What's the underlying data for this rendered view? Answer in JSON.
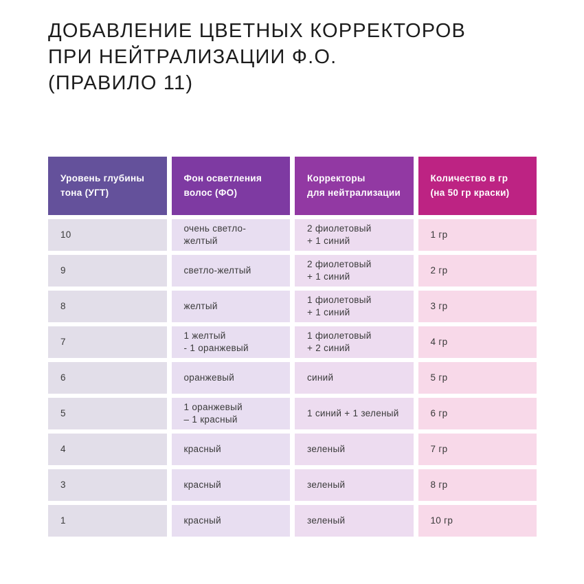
{
  "page": {
    "background_color": "#ffffff",
    "text_color": "#1c1c1c"
  },
  "title": "ДОБАВЛЕНИЕ ЦВЕТНЫХ КОРРЕКТОРОВ\nПРИ НЕЙТРАЛИЗАЦИИ Ф.О.\n(ПРАВИЛО 11)",
  "table": {
    "headers": [
      {
        "label": "Уровень глубины\nтона (УГТ)",
        "color": "#64519b"
      },
      {
        "label": "Фон осветления\nволос (ФО)",
        "color": "#7e3aa2"
      },
      {
        "label": "Корректоры\nдля нейтрализации",
        "color": "#9239a3"
      },
      {
        "label": "Количество в гр\n(на 50 гр краски)",
        "color": "#bd2383"
      }
    ],
    "column_body_colors": [
      "#e2dee9",
      "#e8def1",
      "#eddcf0",
      "#f8d9e9"
    ],
    "rows": [
      [
        "10",
        "очень светло-желтый",
        "2 фиолетовый\n+ 1 синий",
        "1 гр"
      ],
      [
        "9",
        "светло-желтый",
        "2 фиолетовый\n+ 1 синий",
        "2 гр"
      ],
      [
        "8",
        "желтый",
        "1 фиолетовый\n+ 1 синий",
        "3 гр"
      ],
      [
        "7",
        "1 желтый\n- 1 оранжевый",
        "1 фиолетовый\n+ 2 синий",
        "4 гр"
      ],
      [
        "6",
        "оранжевый",
        "синий",
        "5 гр"
      ],
      [
        "5",
        "1 оранжевый\n– 1 красный",
        "1 синий + 1 зеленый",
        "6 гр"
      ],
      [
        "4",
        "красный",
        "зеленый",
        "7 гр"
      ],
      [
        "3",
        "красный",
        "зеленый",
        "8 гр"
      ],
      [
        "1",
        "красный",
        "зеленый",
        "10 гр"
      ]
    ]
  }
}
